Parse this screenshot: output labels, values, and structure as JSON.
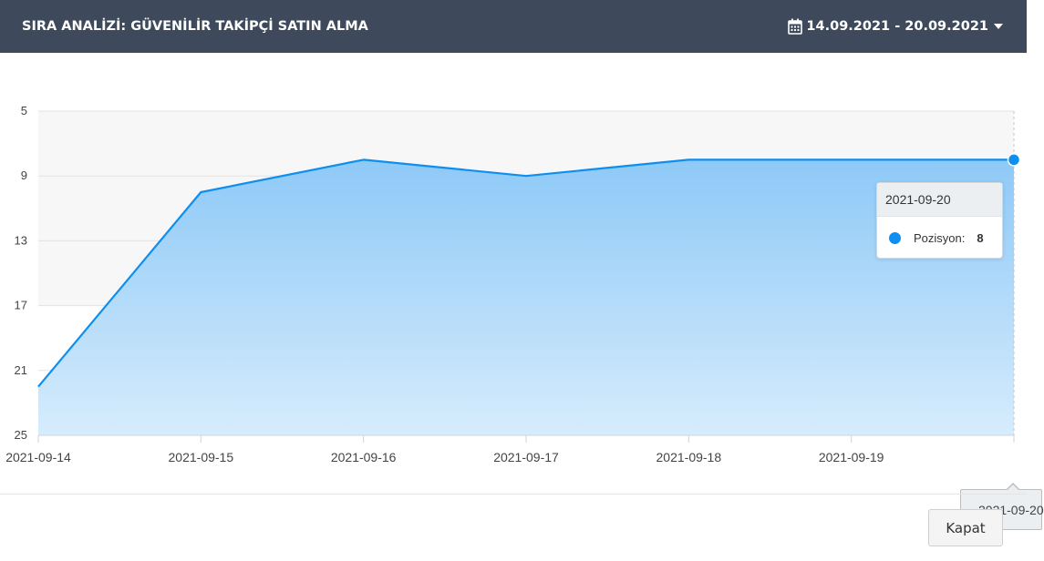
{
  "header": {
    "title": "SIRA ANALİZİ: GÜVENİLİR TAKİPÇİ SATIN ALMA",
    "date_range": "14.09.2021 - 20.09.2021",
    "date_icon": "calendar-icon",
    "dropdown_icon": "caret-down-icon"
  },
  "colors": {
    "header_bg": "#3e4a5b",
    "series_line": "#0e8ff0",
    "series_fill_top": "#8ec9f7",
    "series_fill_bottom": "#d6ecfc"
  },
  "chart_data": {
    "type": "area",
    "x": [
      "2021-09-14",
      "2021-09-15",
      "2021-09-16",
      "2021-09-17",
      "2021-09-18",
      "2021-09-19",
      "2021-09-20"
    ],
    "series": [
      {
        "name": "Pozisyon",
        "values": [
          22,
          10,
          8,
          9,
          8,
          8,
          8
        ]
      }
    ],
    "yticks": [
      5,
      9,
      13,
      17,
      21,
      25
    ],
    "ylim": [
      5,
      25
    ],
    "y_reversed": true,
    "grid": true,
    "title": "",
    "xlabel": "",
    "ylabel": ""
  },
  "tooltip": {
    "date": "2021-09-20",
    "label": "Pozisyon:",
    "value": "8"
  },
  "crosshair_label": "2021-09-20",
  "footer": {
    "close_label": "Kapat"
  }
}
